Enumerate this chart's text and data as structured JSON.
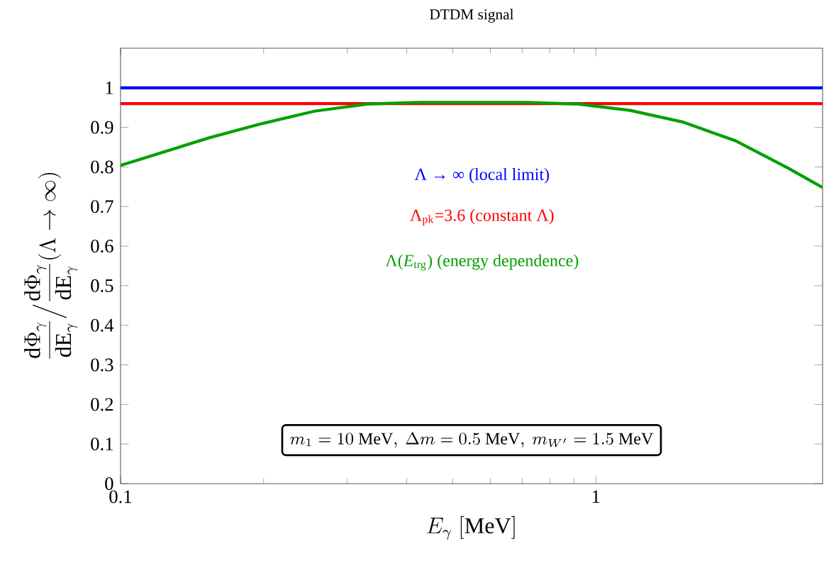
{
  "chart_data": {
    "type": "line",
    "title": "DTDM signal",
    "xlabel": "E_\\gamma\\ [\\mathrm{MeV}]",
    "ylabel": "\\frac{\\mathrm{d}\\Phi_\\gamma}{\\mathrm{dE}_\\gamma}\\Big/\\frac{\\mathrm{d}\\Phi_\\gamma}{\\mathrm{dE}_\\gamma}(\\Lambda\\to\\infty)",
    "log": "x",
    "xlim": [
      0.1,
      3
    ],
    "ylim": [
      0,
      1.1
    ],
    "xticks": [
      0.1,
      1
    ],
    "yticks": [
      0,
      0.1,
      0.2,
      0.3,
      0.4,
      0.5,
      0.6,
      0.7,
      0.8,
      0.9,
      1
    ],
    "grid": false,
    "marker": "none",
    "line_style": "solid",
    "annotations": [
      "m_1=10\\ \\mathrm{MeV},\\ \\Delta m=0.5\\ \\mathrm{MeV},\\ m_{W'}=1.5\\ \\mathrm{MeV}"
    ],
    "series": [
      {
        "name": "Λ → ∞ (local limit)",
        "color": "#0000ff",
        "x": [
          0.1,
          3
        ],
        "values": [
          1,
          1
        ]
      },
      {
        "name": "Λ$_{pk}$=3.6 (constant Λ)",
        "color": "#ff0000",
        "x": [
          0.1,
          3
        ],
        "values": [
          0.96,
          0.96
        ]
      },
      {
        "name": "Λ(*E*$_{trg}$) (energy dependence)",
        "color": "#00a000",
        "x": [
          0.1,
          0.154,
          0.199,
          0.256,
          0.331,
          0.427,
          0.71,
          0.915,
          1.18,
          1.52,
          1.97,
          2.54,
          3
        ],
        "values": [
          0.804,
          0.874,
          0.91,
          0.941,
          0.959,
          0.963,
          0.963,
          0.959,
          0.943,
          0.914,
          0.866,
          0.797,
          0.748
        ]
      }
    ]
  }
}
